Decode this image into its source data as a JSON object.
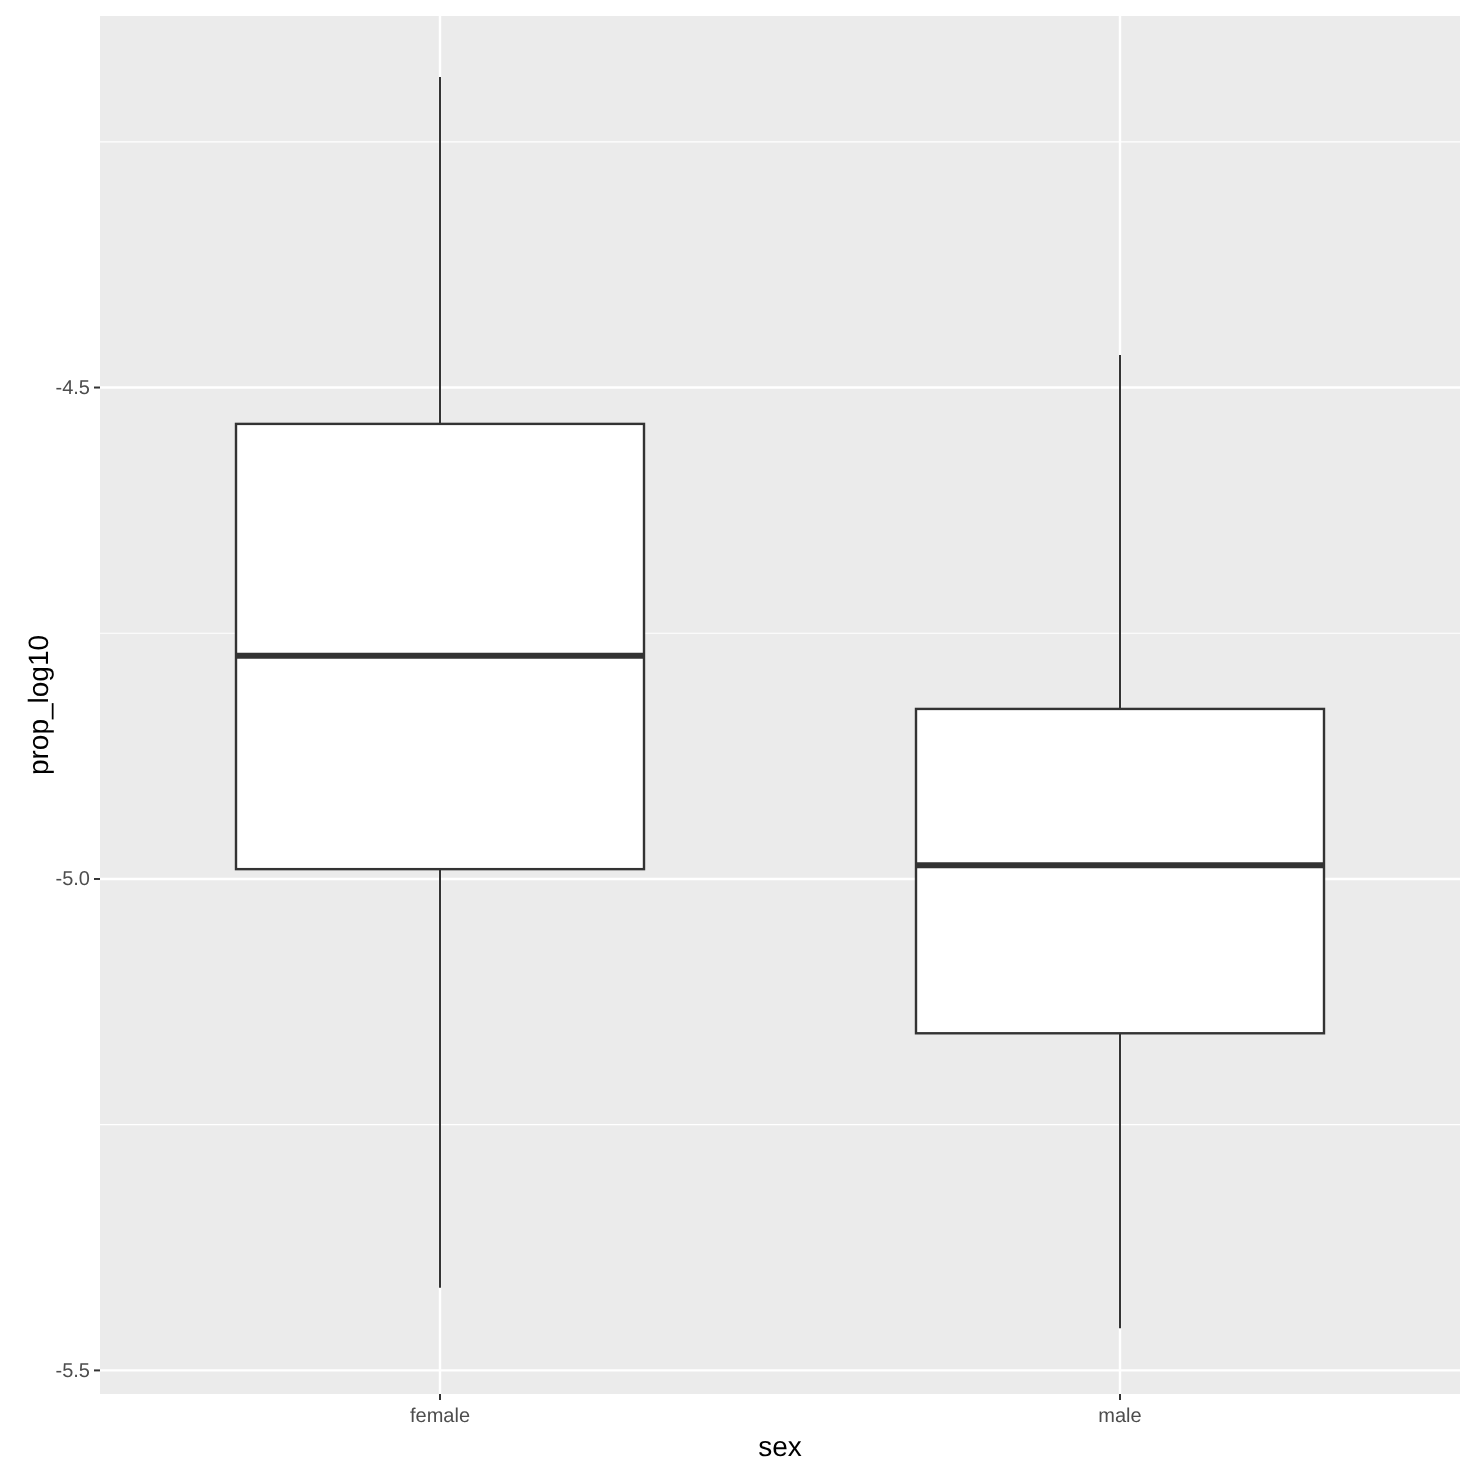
{
  "chart_data": {
    "type": "box",
    "xlabel": "sex",
    "ylabel": "prop_log10",
    "categories": [
      "female",
      "male"
    ],
    "boxes": [
      {
        "low": -5.416,
        "q1": -4.99,
        "median": -4.773,
        "q3": -4.537,
        "high": -4.184
      },
      {
        "low": -5.457,
        "q1": -5.157,
        "median": -4.986,
        "q3": -4.827,
        "high": -4.467
      }
    ],
    "ylim": [
      -5.524,
      -4.122
    ],
    "yticks": [
      {
        "value": -4.25,
        "label": null
      },
      {
        "value": -4.5,
        "label": "-4.5"
      },
      {
        "value": -4.75,
        "label": null
      },
      {
        "value": -5.0,
        "label": "-5.0"
      },
      {
        "value": -5.25,
        "label": null
      },
      {
        "value": -5.5,
        "label": "-5.5"
      }
    ],
    "grid": true
  }
}
